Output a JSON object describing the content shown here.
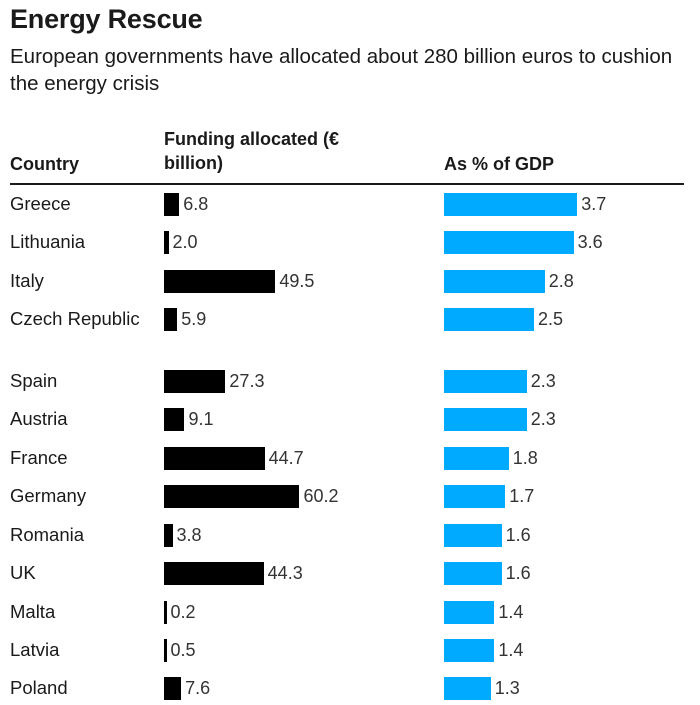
{
  "title": "Energy Rescue",
  "subtitle": "European governments have allocated about 280 billion euros to cushion the energy crisis",
  "headers": {
    "country": "Country",
    "funding": "Funding allocated (€ billion)",
    "gdp": "As % of GDP"
  },
  "colors": {
    "funding_bar": "#000000",
    "gdp_bar": "#00aaff"
  },
  "chart_data": {
    "type": "table",
    "title": "Energy Rescue",
    "subtitle": "European governments have allocated about 280 billion euros to cushion the energy crisis",
    "columns": [
      "Country",
      "Funding allocated (€ billion)",
      "As % of GDP"
    ],
    "rows": [
      {
        "country": "Greece",
        "funding": "6.8",
        "gdp": "3.7"
      },
      {
        "country": "Lithuania",
        "funding": "2.0",
        "gdp": "3.6"
      },
      {
        "country": "Italy",
        "funding": "49.5",
        "gdp": "2.8"
      },
      {
        "country": "Czech Republic",
        "funding": "5.9",
        "gdp": "2.5"
      },
      {
        "country": "Spain",
        "funding": "27.3",
        "gdp": "2.3"
      },
      {
        "country": "Austria",
        "funding": "9.1",
        "gdp": "2.3"
      },
      {
        "country": "France",
        "funding": "44.7",
        "gdp": "1.8"
      },
      {
        "country": "Germany",
        "funding": "60.2",
        "gdp": "1.7"
      },
      {
        "country": "Romania",
        "funding": "3.8",
        "gdp": "1.6"
      },
      {
        "country": "UK",
        "funding": "44.3",
        "gdp": "1.6"
      },
      {
        "country": "Malta",
        "funding": "0.2",
        "gdp": "1.4"
      },
      {
        "country": "Latvia",
        "funding": "0.5",
        "gdp": "1.4"
      },
      {
        "country": "Poland",
        "funding": "7.6",
        "gdp": "1.3"
      }
    ]
  }
}
